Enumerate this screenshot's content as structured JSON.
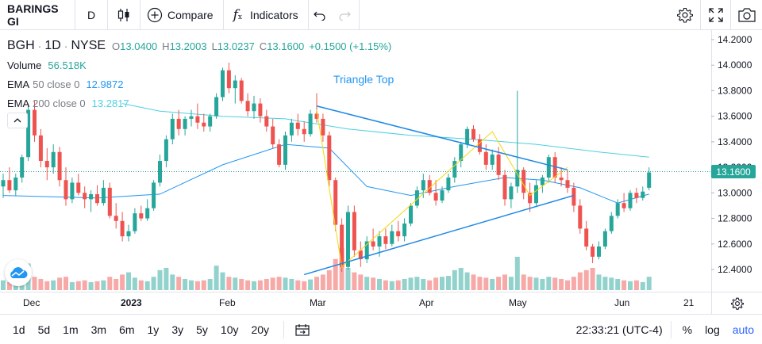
{
  "toolbar": {
    "symbol": "BARINGS GI",
    "interval": "D",
    "compare_label": "Compare",
    "indicators_label": "Indicators"
  },
  "legend": {
    "ticker": "BGH",
    "interval": "1D",
    "exchange": "NYSE",
    "open_label": "O",
    "open": "13.0400",
    "high_label": "H",
    "high": "13.2003",
    "low_label": "L",
    "low": "13.0237",
    "close_label": "C",
    "close": "13.1600",
    "change": "+0.1500 (+1.15%)",
    "volume_label": "Volume",
    "volume": "56.518K",
    "ema50_label": "EMA",
    "ema50_params": "50 close 0",
    "ema50_value": "12.9872",
    "ema200_label": "EMA",
    "ema200_params": "200 close 0",
    "ema200_value": "13.2817"
  },
  "annotation": {
    "pattern_label": "Triangle Top"
  },
  "price_axis": {
    "ticks": [
      "14.2000",
      "14.0000",
      "13.8000",
      "13.6000",
      "13.4000",
      "13.2000",
      "13.0000",
      "12.8000",
      "12.6000",
      "12.4000"
    ],
    "last_price": "13.1600"
  },
  "time_axis": {
    "labels": [
      {
        "text": "Dec",
        "bold": false
      },
      {
        "text": "2023",
        "bold": true
      },
      {
        "text": "Feb",
        "bold": false
      },
      {
        "text": "Mar",
        "bold": false
      },
      {
        "text": "Apr",
        "bold": false
      },
      {
        "text": "May",
        "bold": false
      },
      {
        "text": "Jun",
        "bold": false
      },
      {
        "text": "21",
        "bold": false
      }
    ]
  },
  "bottombar": {
    "ranges": [
      "1d",
      "5d",
      "1m",
      "3m",
      "6m",
      "1y",
      "3y",
      "5y",
      "10y",
      "20y"
    ],
    "clock": "22:33:21 (UTC-4)",
    "percent_label": "%",
    "log_label": "log",
    "auto_label": "auto"
  },
  "colors": {
    "up": "#26a69a",
    "down": "#ef5350",
    "ema50": "#2196f3",
    "ema200": "#4dd0e1",
    "pattern": "#f5d90a",
    "trendline": "#1e88e5"
  },
  "chart_data": {
    "type": "candlestick",
    "ylim": [
      12.3,
      14.3
    ],
    "x_range": [
      "2022-11-21",
      "2023-06-21"
    ],
    "candles": [
      {
        "o": 13.05,
        "h": 13.15,
        "l": 12.96,
        "c": 13.1
      },
      {
        "o": 13.1,
        "h": 13.2,
        "l": 13.0,
        "c": 13.02
      },
      {
        "o": 13.02,
        "h": 13.15,
        "l": 12.98,
        "c": 13.12
      },
      {
        "o": 13.12,
        "h": 13.3,
        "l": 13.08,
        "c": 13.28
      },
      {
        "o": 13.28,
        "h": 13.7,
        "l": 13.25,
        "c": 13.65
      },
      {
        "o": 13.65,
        "h": 13.72,
        "l": 13.4,
        "c": 13.45
      },
      {
        "o": 13.45,
        "h": 13.5,
        "l": 13.2,
        "c": 13.25
      },
      {
        "o": 13.25,
        "h": 13.35,
        "l": 13.1,
        "c": 13.2
      },
      {
        "o": 13.2,
        "h": 13.38,
        "l": 13.15,
        "c": 13.32
      },
      {
        "o": 13.32,
        "h": 13.36,
        "l": 13.05,
        "c": 13.1
      },
      {
        "o": 13.1,
        "h": 13.2,
        "l": 12.9,
        "c": 12.95
      },
      {
        "o": 12.95,
        "h": 13.12,
        "l": 12.92,
        "c": 13.08
      },
      {
        "o": 13.08,
        "h": 13.15,
        "l": 12.98,
        "c": 13.0
      },
      {
        "o": 13.0,
        "h": 13.05,
        "l": 12.88,
        "c": 12.95
      },
      {
        "o": 12.95,
        "h": 13.02,
        "l": 12.85,
        "c": 12.99
      },
      {
        "o": 12.99,
        "h": 13.06,
        "l": 12.9,
        "c": 12.92
      },
      {
        "o": 12.92,
        "h": 13.1,
        "l": 12.9,
        "c": 13.04
      },
      {
        "o": 13.04,
        "h": 13.08,
        "l": 12.8,
        "c": 12.82
      },
      {
        "o": 12.82,
        "h": 12.92,
        "l": 12.72,
        "c": 12.78
      },
      {
        "o": 12.78,
        "h": 12.85,
        "l": 12.62,
        "c": 12.66
      },
      {
        "o": 12.66,
        "h": 12.75,
        "l": 12.62,
        "c": 12.7
      },
      {
        "o": 12.7,
        "h": 12.88,
        "l": 12.68,
        "c": 12.84
      },
      {
        "o": 12.84,
        "h": 12.9,
        "l": 12.78,
        "c": 12.8
      },
      {
        "o": 12.8,
        "h": 12.95,
        "l": 12.78,
        "c": 12.88
      },
      {
        "o": 12.88,
        "h": 13.1,
        "l": 12.86,
        "c": 13.08
      },
      {
        "o": 13.08,
        "h": 13.3,
        "l": 13.05,
        "c": 13.25
      },
      {
        "o": 13.25,
        "h": 13.45,
        "l": 13.2,
        "c": 13.42
      },
      {
        "o": 13.42,
        "h": 13.62,
        "l": 13.38,
        "c": 13.58
      },
      {
        "o": 13.58,
        "h": 13.65,
        "l": 13.45,
        "c": 13.5
      },
      {
        "o": 13.5,
        "h": 13.6,
        "l": 13.45,
        "c": 13.58
      },
      {
        "o": 13.58,
        "h": 13.65,
        "l": 13.52,
        "c": 13.6
      },
      {
        "o": 13.6,
        "h": 13.7,
        "l": 13.5,
        "c": 13.55
      },
      {
        "o": 13.55,
        "h": 13.62,
        "l": 13.48,
        "c": 13.52
      },
      {
        "o": 13.52,
        "h": 13.62,
        "l": 13.48,
        "c": 13.6
      },
      {
        "o": 13.6,
        "h": 13.78,
        "l": 13.58,
        "c": 13.75
      },
      {
        "o": 13.75,
        "h": 13.98,
        "l": 13.72,
        "c": 13.96
      },
      {
        "o": 13.96,
        "h": 14.02,
        "l": 13.78,
        "c": 13.82
      },
      {
        "o": 13.82,
        "h": 13.92,
        "l": 13.7,
        "c": 13.88
      },
      {
        "o": 13.88,
        "h": 13.9,
        "l": 13.7,
        "c": 13.72
      },
      {
        "o": 13.72,
        "h": 13.78,
        "l": 13.6,
        "c": 13.64
      },
      {
        "o": 13.64,
        "h": 13.76,
        "l": 13.58,
        "c": 13.7
      },
      {
        "o": 13.7,
        "h": 13.74,
        "l": 13.55,
        "c": 13.6
      },
      {
        "o": 13.6,
        "h": 13.65,
        "l": 13.48,
        "c": 13.52
      },
      {
        "o": 13.52,
        "h": 13.58,
        "l": 13.35,
        "c": 13.38
      },
      {
        "o": 13.38,
        "h": 13.42,
        "l": 13.2,
        "c": 13.22
      },
      {
        "o": 13.22,
        "h": 13.48,
        "l": 13.18,
        "c": 13.45
      },
      {
        "o": 13.45,
        "h": 13.58,
        "l": 13.4,
        "c": 13.55
      },
      {
        "o": 13.55,
        "h": 13.62,
        "l": 13.45,
        "c": 13.5
      },
      {
        "o": 13.5,
        "h": 13.56,
        "l": 13.4,
        "c": 13.46
      },
      {
        "o": 13.46,
        "h": 13.65,
        "l": 13.44,
        "c": 13.62
      },
      {
        "o": 13.62,
        "h": 13.78,
        "l": 13.55,
        "c": 13.58
      },
      {
        "o": 13.58,
        "h": 13.62,
        "l": 13.4,
        "c": 13.45
      },
      {
        "o": 13.45,
        "h": 13.48,
        "l": 13.05,
        "c": 13.1
      },
      {
        "o": 13.1,
        "h": 13.12,
        "l": 12.7,
        "c": 12.75
      },
      {
        "o": 12.75,
        "h": 12.8,
        "l": 12.38,
        "c": 12.42
      },
      {
        "o": 12.42,
        "h": 12.9,
        "l": 12.4,
        "c": 12.85
      },
      {
        "o": 12.85,
        "h": 12.9,
        "l": 12.5,
        "c": 12.55
      },
      {
        "o": 12.55,
        "h": 12.62,
        "l": 12.42,
        "c": 12.48
      },
      {
        "o": 12.48,
        "h": 12.66,
        "l": 12.45,
        "c": 12.62
      },
      {
        "o": 12.62,
        "h": 12.72,
        "l": 12.55,
        "c": 12.58
      },
      {
        "o": 12.58,
        "h": 12.7,
        "l": 12.5,
        "c": 12.66
      },
      {
        "o": 12.66,
        "h": 12.72,
        "l": 12.56,
        "c": 12.6
      },
      {
        "o": 12.6,
        "h": 12.75,
        "l": 12.58,
        "c": 12.7
      },
      {
        "o": 12.7,
        "h": 12.78,
        "l": 12.62,
        "c": 12.66
      },
      {
        "o": 12.66,
        "h": 12.8,
        "l": 12.62,
        "c": 12.76
      },
      {
        "o": 12.76,
        "h": 12.92,
        "l": 12.74,
        "c": 12.9
      },
      {
        "o": 12.9,
        "h": 13.05,
        "l": 12.88,
        "c": 13.02
      },
      {
        "o": 13.02,
        "h": 13.15,
        "l": 12.96,
        "c": 13.1
      },
      {
        "o": 13.1,
        "h": 13.14,
        "l": 12.98,
        "c": 13.0
      },
      {
        "o": 13.0,
        "h": 13.1,
        "l": 12.9,
        "c": 12.94
      },
      {
        "o": 12.94,
        "h": 13.05,
        "l": 12.92,
        "c": 13.02
      },
      {
        "o": 13.02,
        "h": 13.15,
        "l": 13.0,
        "c": 13.12
      },
      {
        "o": 13.12,
        "h": 13.28,
        "l": 13.08,
        "c": 13.25
      },
      {
        "o": 13.25,
        "h": 13.4,
        "l": 13.2,
        "c": 13.38
      },
      {
        "o": 13.38,
        "h": 13.52,
        "l": 13.35,
        "c": 13.5
      },
      {
        "o": 13.5,
        "h": 13.53,
        "l": 13.4,
        "c": 13.42
      },
      {
        "o": 13.42,
        "h": 13.46,
        "l": 13.3,
        "c": 13.32
      },
      {
        "o": 13.32,
        "h": 13.38,
        "l": 13.18,
        "c": 13.22
      },
      {
        "o": 13.22,
        "h": 13.34,
        "l": 13.18,
        "c": 13.3
      },
      {
        "o": 13.3,
        "h": 13.36,
        "l": 13.1,
        "c": 13.14
      },
      {
        "o": 13.14,
        "h": 13.18,
        "l": 12.9,
        "c": 12.95
      },
      {
        "o": 12.95,
        "h": 13.08,
        "l": 12.88,
        "c": 13.05
      },
      {
        "o": 13.05,
        "h": 13.8,
        "l": 13.0,
        "c": 13.18
      },
      {
        "o": 13.18,
        "h": 13.2,
        "l": 12.95,
        "c": 13.0
      },
      {
        "o": 13.0,
        "h": 13.08,
        "l": 12.85,
        "c": 12.92
      },
      {
        "o": 12.92,
        "h": 13.1,
        "l": 12.9,
        "c": 13.06
      },
      {
        "o": 13.06,
        "h": 13.14,
        "l": 13.0,
        "c": 13.12
      },
      {
        "o": 13.12,
        "h": 13.3,
        "l": 13.08,
        "c": 13.28
      },
      {
        "o": 13.28,
        "h": 13.32,
        "l": 13.08,
        "c": 13.12
      },
      {
        "o": 13.12,
        "h": 13.2,
        "l": 13.05,
        "c": 13.1
      },
      {
        "o": 13.1,
        "h": 13.18,
        "l": 13.0,
        "c": 13.04
      },
      {
        "o": 13.04,
        "h": 13.08,
        "l": 12.85,
        "c": 12.9
      },
      {
        "o": 12.9,
        "h": 12.95,
        "l": 12.68,
        "c": 12.72
      },
      {
        "o": 12.72,
        "h": 12.78,
        "l": 12.55,
        "c": 12.58
      },
      {
        "o": 12.58,
        "h": 12.6,
        "l": 12.45,
        "c": 12.5
      },
      {
        "o": 12.5,
        "h": 12.62,
        "l": 12.48,
        "c": 12.58
      },
      {
        "o": 12.58,
        "h": 12.72,
        "l": 12.56,
        "c": 12.7
      },
      {
        "o": 12.7,
        "h": 12.85,
        "l": 12.68,
        "c": 12.82
      },
      {
        "o": 12.82,
        "h": 12.95,
        "l": 12.8,
        "c": 12.92
      },
      {
        "o": 12.92,
        "h": 13.0,
        "l": 12.85,
        "c": 12.88
      },
      {
        "o": 12.88,
        "h": 13.02,
        "l": 12.86,
        "c": 13.0
      },
      {
        "o": 13.0,
        "h": 13.04,
        "l": 12.92,
        "c": 12.96
      },
      {
        "o": 12.96,
        "h": 13.05,
        "l": 12.94,
        "c": 13.01
      },
      {
        "o": 13.04,
        "h": 13.2,
        "l": 13.02,
        "c": 13.16
      }
    ],
    "volume_max_relative": 1.0,
    "volumes": [
      0.22,
      0.18,
      0.2,
      0.35,
      0.6,
      0.3,
      0.25,
      0.2,
      0.22,
      0.28,
      0.3,
      0.18,
      0.2,
      0.22,
      0.18,
      0.2,
      0.22,
      0.3,
      0.25,
      0.35,
      0.4,
      0.28,
      0.22,
      0.2,
      0.3,
      0.45,
      0.5,
      0.35,
      0.3,
      0.25,
      0.22,
      0.2,
      0.22,
      0.25,
      0.55,
      0.4,
      0.3,
      0.28,
      0.25,
      0.22,
      0.2,
      0.22,
      0.25,
      0.28,
      0.3,
      0.28,
      0.25,
      0.22,
      0.2,
      0.24,
      0.3,
      0.35,
      0.45,
      0.7,
      0.95,
      0.5,
      0.4,
      0.35,
      0.3,
      0.28,
      0.25,
      0.22,
      0.2,
      0.22,
      0.25,
      0.28,
      0.3,
      0.25,
      0.22,
      0.28,
      0.3,
      0.32,
      0.45,
      0.5,
      0.4,
      0.35,
      0.3,
      0.28,
      0.25,
      0.3,
      0.35,
      0.3,
      0.75,
      0.35,
      0.3,
      0.28,
      0.25,
      0.3,
      0.28,
      0.25,
      0.22,
      0.3,
      0.4,
      0.45,
      0.5,
      0.35,
      0.3,
      0.28,
      0.25,
      0.22,
      0.2,
      0.22,
      0.18,
      0.3
    ],
    "ema50": [
      {
        "i": 0,
        "v": 12.98
      },
      {
        "i": 15,
        "v": 12.96
      },
      {
        "i": 25,
        "v": 12.99
      },
      {
        "i": 35,
        "v": 13.22
      },
      {
        "i": 45,
        "v": 13.38
      },
      {
        "i": 52,
        "v": 13.35
      },
      {
        "i": 58,
        "v": 13.05
      },
      {
        "i": 65,
        "v": 12.98
      },
      {
        "i": 72,
        "v": 13.05
      },
      {
        "i": 80,
        "v": 13.12
      },
      {
        "i": 86,
        "v": 13.1
      },
      {
        "i": 92,
        "v": 13.04
      },
      {
        "i": 98,
        "v": 12.92
      },
      {
        "i": 103,
        "v": 12.99
      }
    ],
    "ema200": [
      {
        "i": 19,
        "v": 13.7
      },
      {
        "i": 25,
        "v": 13.64
      },
      {
        "i": 35,
        "v": 13.6
      },
      {
        "i": 45,
        "v": 13.58
      },
      {
        "i": 55,
        "v": 13.5
      },
      {
        "i": 65,
        "v": 13.45
      },
      {
        "i": 75,
        "v": 13.42
      },
      {
        "i": 85,
        "v": 13.38
      },
      {
        "i": 95,
        "v": 13.32
      },
      {
        "i": 103,
        "v": 13.28
      }
    ],
    "pattern_points": [
      {
        "i": 50,
        "v": 13.65
      },
      {
        "i": 54,
        "v": 12.42
      },
      {
        "i": 78,
        "v": 13.48
      },
      {
        "i": 84,
        "v": 12.98
      },
      {
        "i": 90,
        "v": 13.2
      }
    ],
    "trend_lines": [
      {
        "from": {
          "i": 50,
          "v": 13.68
        },
        "to": {
          "i": 90,
          "v": 13.18
        }
      },
      {
        "from": {
          "i": 48,
          "v": 12.36
        },
        "to": {
          "i": 91,
          "v": 12.98
        }
      }
    ]
  }
}
